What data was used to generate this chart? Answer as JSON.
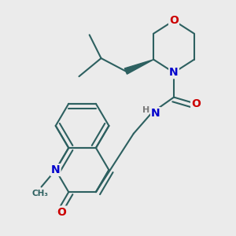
{
  "background_color": "#ebebeb",
  "bond_color": "#2d6060",
  "bond_width": 1.5,
  "atom_colors": {
    "N": "#0000cc",
    "O": "#cc0000",
    "C": "#2d6060",
    "H": "#7a7a7a"
  },
  "font_size_atom": 10,
  "wedge_color": "#1a1a1a"
}
